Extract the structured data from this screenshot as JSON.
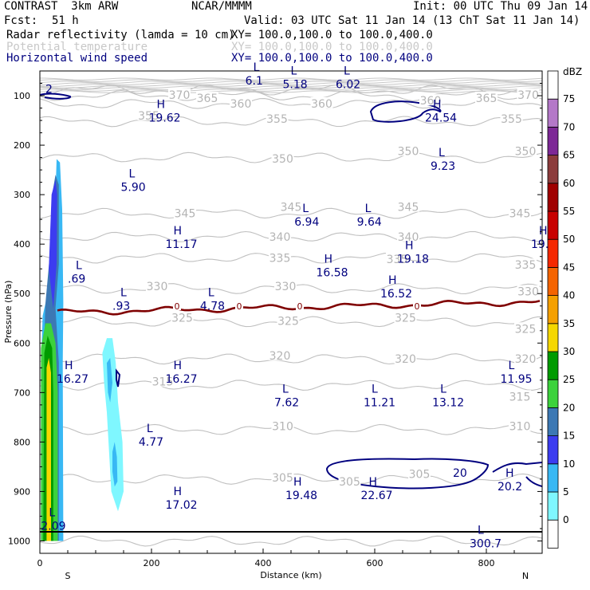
{
  "header": {
    "title_left": "CONTRAST  3km ARW",
    "center": "NCAR/MMMM",
    "init": "Init: 00 UTC Thu 09 Jan 14",
    "fcst_label": "Fcst:",
    "fcst_value": "51 h",
    "valid": "Valid: 03 UTC Sat 11 Jan 14 (13 ChT Sat 11 Jan 14)",
    "fields": [
      {
        "name": "Radar reflectivity (lamda = 10 cm)",
        "xy": "XY= 100.0,100.0 to 100.0,400.0",
        "color": "#000000"
      },
      {
        "name": "Potential temperature",
        "xy": "XY= 100.0,100.0 to 100.0,400.0",
        "color": "#c8c8c8"
      },
      {
        "name": "Horizontal wind speed",
        "xy": "XY= 100.0,100.0 to 100.0,400.0",
        "color": "#00007f"
      }
    ]
  },
  "chart_data": {
    "type": "cross-section contour",
    "xlabel": "Distance (km)",
    "ylabel": "Pressure (hPa)",
    "xlim": [
      0,
      900
    ],
    "ylim": [
      1025,
      50
    ],
    "x_ticks": [
      0,
      200,
      400,
      600,
      800
    ],
    "y_ticks": [
      100,
      200,
      300,
      400,
      500,
      600,
      700,
      800,
      900,
      1000
    ],
    "endpoint_labels": [
      {
        "x": 50,
        "text": "S"
      },
      {
        "x": 870,
        "text": "N"
      }
    ],
    "colorbar": {
      "unit": "dBZ",
      "levels": [
        0,
        5,
        10,
        15,
        20,
        25,
        30,
        35,
        40,
        45,
        50,
        55,
        60,
        65,
        70,
        75
      ],
      "colors": [
        "#ffffff",
        "#7ff7ff",
        "#38b8f4",
        "#3c3cf0",
        "#3c78b4",
        "#3cd23c",
        "#009b00",
        "#f5d700",
        "#f5a000",
        "#f56400",
        "#f52800",
        "#c80000",
        "#a00000",
        "#8c3c3c",
        "#7d2896",
        "#b478c8",
        "#ffffff"
      ]
    },
    "theta_contours": [
      {
        "value": 300,
        "p": 1000
      },
      {
        "value": 305,
        "p": 875
      },
      {
        "value": 310,
        "p": 775
      },
      {
        "value": 315,
        "p": 685
      },
      {
        "value": 320,
        "p": 632
      },
      {
        "value": 325,
        "p": 557
      },
      {
        "value": 330,
        "p": 490
      },
      {
        "value": 335,
        "p": 428
      },
      {
        "value": 340,
        "p": 385
      },
      {
        "value": 345,
        "p": 338
      },
      {
        "value": 350,
        "p": 225
      },
      {
        "value": 355,
        "p": 152
      },
      {
        "value": 360,
        "p": 116
      },
      {
        "value": 365,
        "p": 100
      },
      {
        "value": 370,
        "p": 88
      }
    ],
    "theta_labels": [
      {
        "x": 250,
        "p": 98,
        "text": "370"
      },
      {
        "x": 875,
        "p": 98,
        "text": "370"
      },
      {
        "x": 300,
        "p": 105,
        "text": "365"
      },
      {
        "x": 800,
        "p": 105,
        "text": "365"
      },
      {
        "x": 360,
        "p": 116,
        "text": "360"
      },
      {
        "x": 505,
        "p": 116,
        "text": "360"
      },
      {
        "x": 700,
        "p": 110,
        "text": "360"
      },
      {
        "x": 195,
        "p": 140,
        "text": "355"
      },
      {
        "x": 425,
        "p": 147,
        "text": "355"
      },
      {
        "x": 845,
        "p": 147,
        "text": "355"
      },
      {
        "x": 435,
        "p": 227,
        "text": "350"
      },
      {
        "x": 660,
        "p": 212,
        "text": "350"
      },
      {
        "x": 870,
        "p": 212,
        "text": "350"
      },
      {
        "x": 260,
        "p": 338,
        "text": "345"
      },
      {
        "x": 450,
        "p": 325,
        "text": "345"
      },
      {
        "x": 660,
        "p": 325,
        "text": "345"
      },
      {
        "x": 860,
        "p": 338,
        "text": "345"
      },
      {
        "x": 430,
        "p": 385,
        "text": "340"
      },
      {
        "x": 660,
        "p": 385,
        "text": "340"
      },
      {
        "x": 430,
        "p": 428,
        "text": "335"
      },
      {
        "x": 640,
        "p": 430,
        "text": "335"
      },
      {
        "x": 870,
        "p": 442,
        "text": "335"
      },
      {
        "x": 210,
        "p": 485,
        "text": "330"
      },
      {
        "x": 440,
        "p": 485,
        "text": "330"
      },
      {
        "x": 875,
        "p": 496,
        "text": "330"
      },
      {
        "x": 255,
        "p": 549,
        "text": "325"
      },
      {
        "x": 445,
        "p": 555,
        "text": "325"
      },
      {
        "x": 655,
        "p": 549,
        "text": "325"
      },
      {
        "x": 870,
        "p": 571,
        "text": "325"
      },
      {
        "x": 430,
        "p": 625,
        "text": "320"
      },
      {
        "x": 655,
        "p": 632,
        "text": "320"
      },
      {
        "x": 870,
        "p": 632,
        "text": "320"
      },
      {
        "x": 220,
        "p": 678,
        "text": "315"
      },
      {
        "x": 860,
        "p": 708,
        "text": "315"
      },
      {
        "x": 435,
        "p": 768,
        "text": "310"
      },
      {
        "x": 860,
        "p": 768,
        "text": "310"
      },
      {
        "x": 435,
        "p": 872,
        "text": "305"
      },
      {
        "x": 555,
        "p": 880,
        "text": "305"
      },
      {
        "x": 680,
        "p": 865,
        "text": "305"
      }
    ],
    "wind_lows": [
      {
        "x": 368,
        "p": 60,
        "value": "6.1"
      },
      {
        "x": 435,
        "p": 67,
        "value": "5.18"
      },
      {
        "x": 530,
        "p": 67,
        "value": "6.02"
      },
      {
        "x": 145,
        "p": 275,
        "value": "5.90"
      },
      {
        "x": 700,
        "p": 232,
        "value": "9.23"
      },
      {
        "x": 456,
        "p": 345,
        "value": "6.94"
      },
      {
        "x": 568,
        "p": 345,
        "value": "9.64"
      },
      {
        "x": 50,
        "p": 460,
        "value": ".69"
      },
      {
        "x": 130,
        "p": 515,
        "value": ".93"
      },
      {
        "x": 287,
        "p": 515,
        "value": "4.78"
      },
      {
        "x": 420,
        "p": 710,
        "value": "7.62"
      },
      {
        "x": 580,
        "p": 710,
        "value": "11.21"
      },
      {
        "x": 703,
        "p": 710,
        "value": "13.12"
      },
      {
        "x": 825,
        "p": 662,
        "value": "11.95"
      },
      {
        "x": 177,
        "p": 790,
        "value": "4.77"
      },
      {
        "x": 2,
        "p": 960,
        "value": "2.09"
      },
      {
        "x": 770,
        "p": 995,
        "value": "300.7"
      }
    ],
    "wind_highs": [
      {
        "x": 195,
        "p": 135,
        "value": "19.62"
      },
      {
        "x": 690,
        "p": 135,
        "value": "24.54"
      },
      {
        "x": 225,
        "p": 390,
        "value": "11.17"
      },
      {
        "x": 495,
        "p": 447,
        "value": "16.58"
      },
      {
        "x": 640,
        "p": 420,
        "value": "19.18"
      },
      {
        "x": 880,
        "p": 390,
        "value": "19."
      },
      {
        "x": 610,
        "p": 490,
        "value": "16.52"
      },
      {
        "x": 30,
        "p": 662,
        "value": "16.27"
      },
      {
        "x": 225,
        "p": 662,
        "value": "16.27"
      },
      {
        "x": 440,
        "p": 898,
        "value": "19.48"
      },
      {
        "x": 575,
        "p": 898,
        "value": "22.67"
      },
      {
        "x": 820,
        "p": 880,
        "value": "20.2"
      },
      {
        "x": 225,
        "p": 917,
        "value": "17.02"
      }
    ],
    "wind_contour_labels": [
      {
        "x": 10,
        "p": 94,
        "value": "2"
      },
      {
        "x": 740,
        "p": 870,
        "value": "20"
      }
    ],
    "freezing_level_label": "0"
  }
}
